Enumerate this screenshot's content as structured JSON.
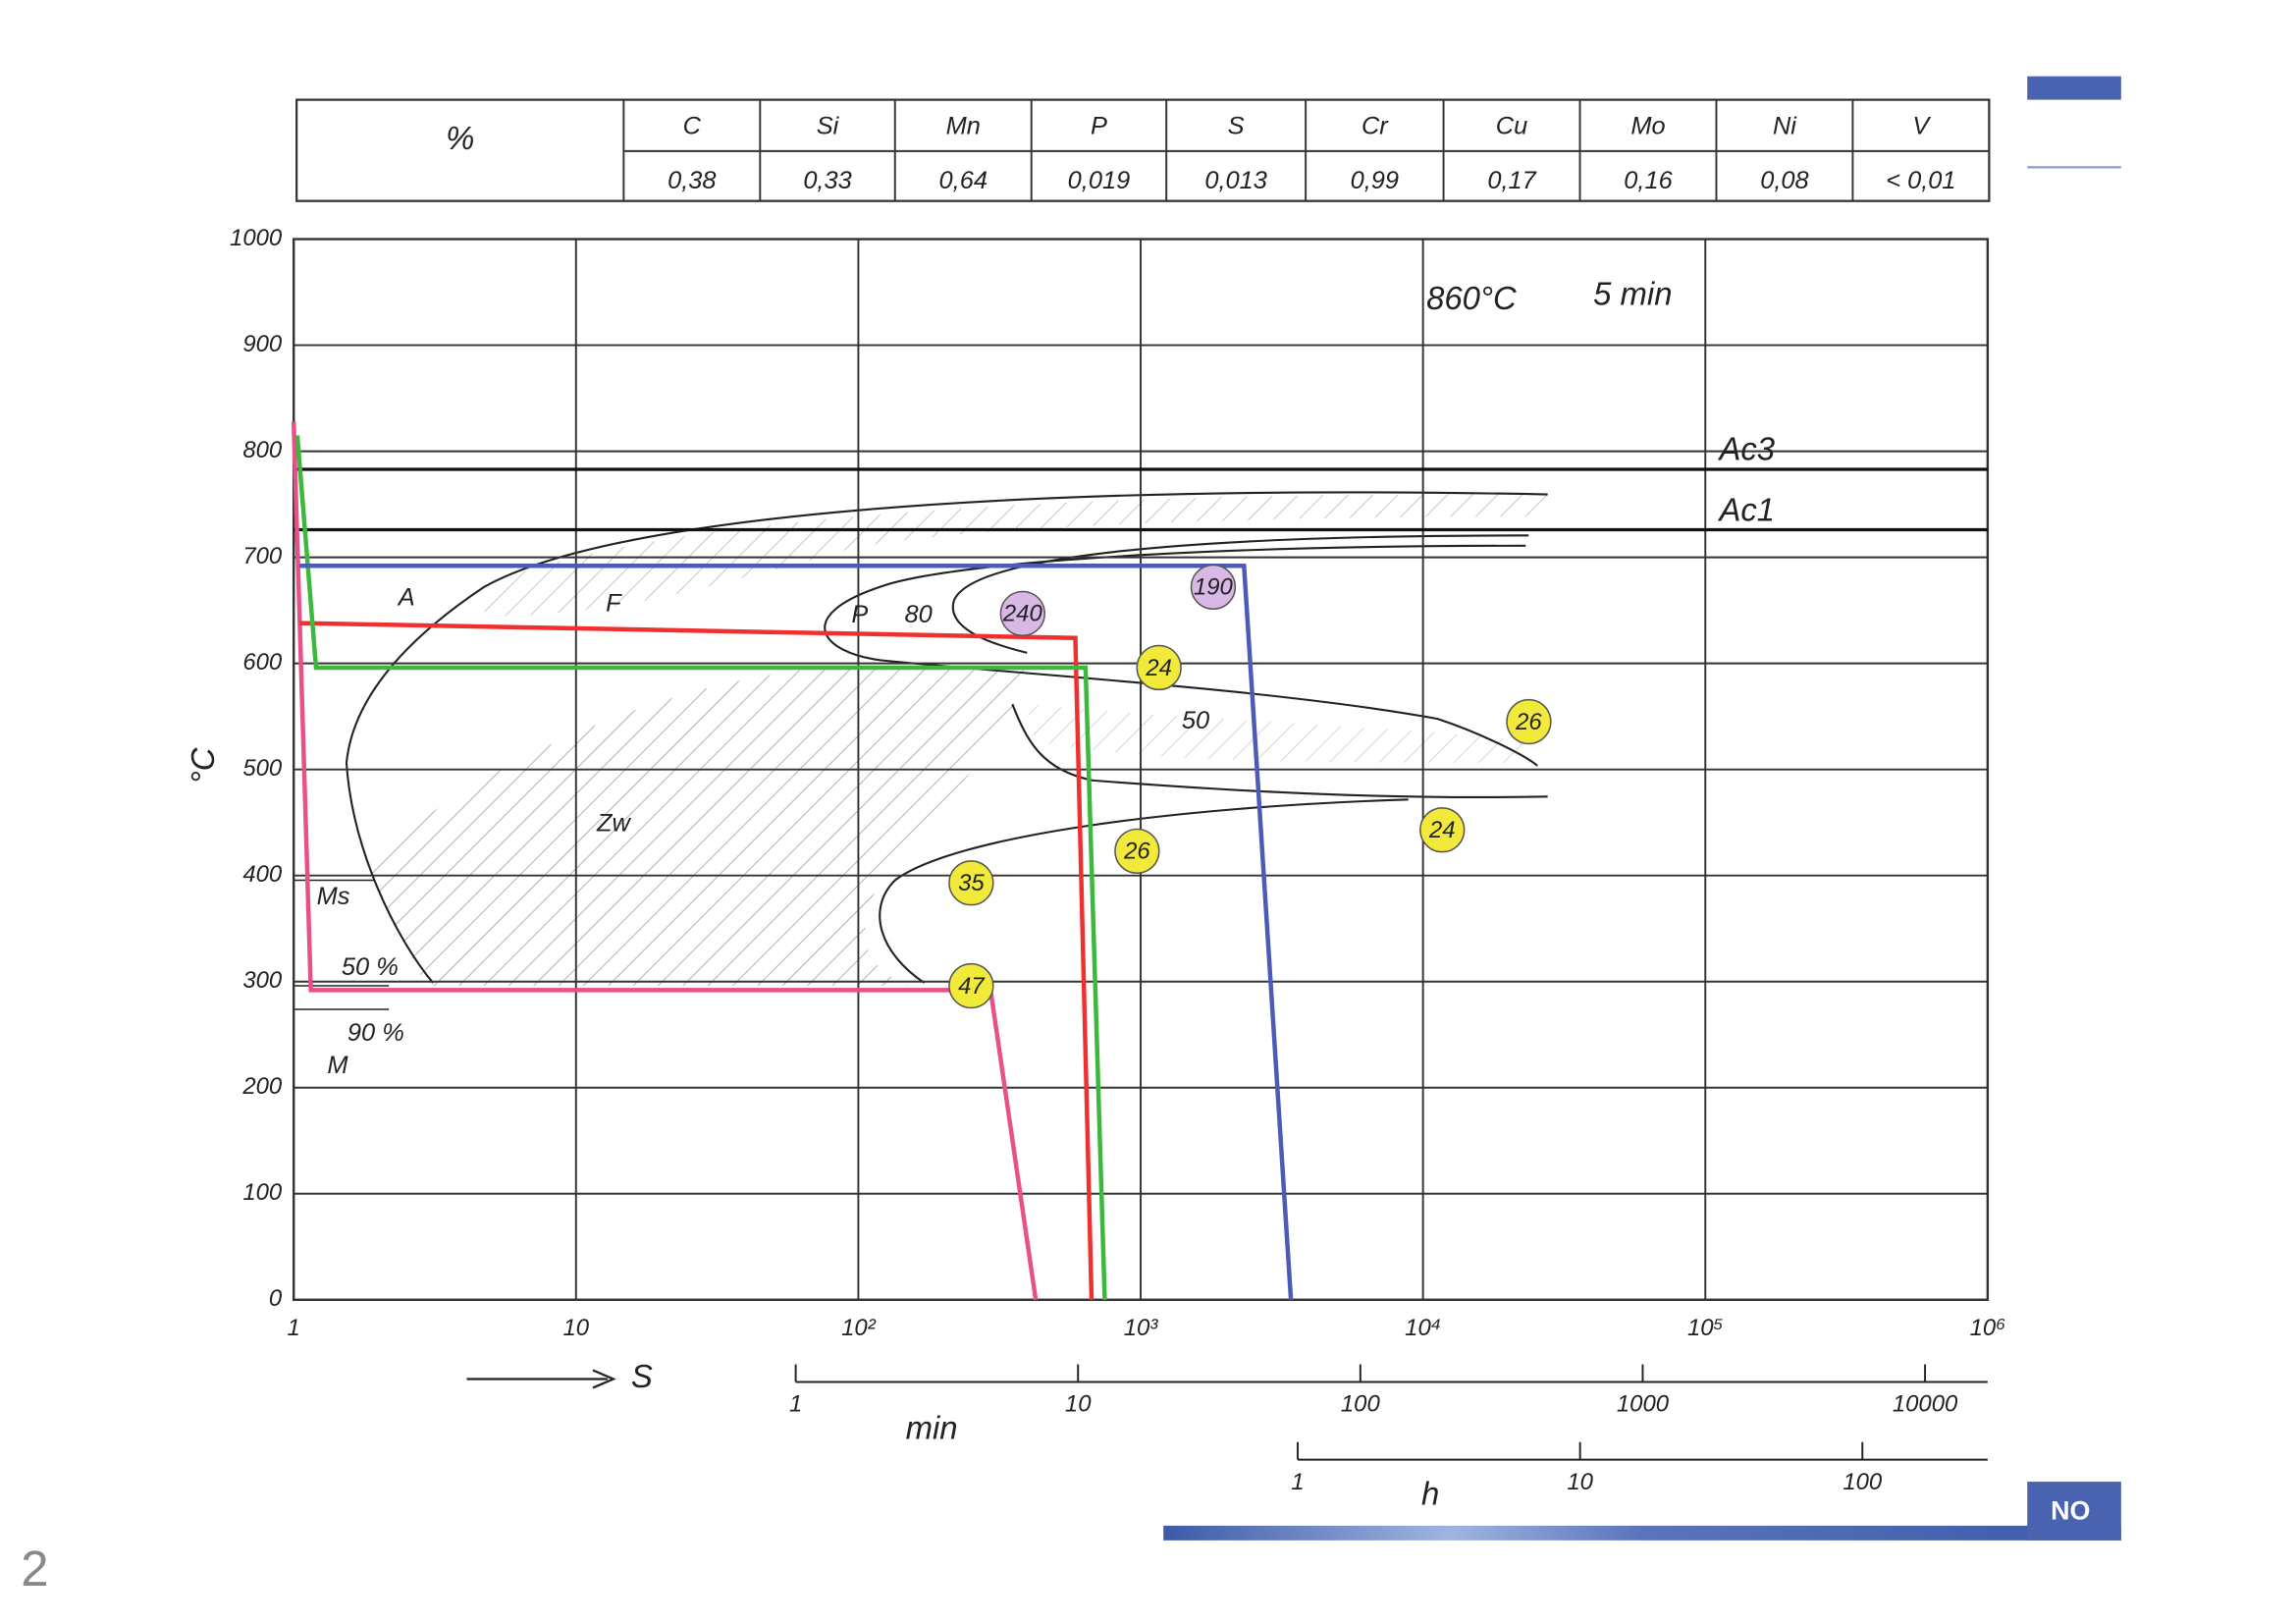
{
  "table": {
    "header": [
      "%",
      "C",
      "Si",
      "Mn",
      "P",
      "S",
      "Cr",
      "Cu",
      "Mo",
      "Ni",
      "V"
    ],
    "values": [
      "0,38",
      "0,33",
      "0,64",
      "0,019",
      "0,013",
      "0,99",
      "0,17",
      "0,16",
      "0,08",
      "< 0,01"
    ]
  },
  "chart_data": {
    "type": "cct",
    "ylabel": "°C",
    "ylim": [
      0,
      1000
    ],
    "yticks": [
      0,
      100,
      200,
      300,
      400,
      500,
      600,
      700,
      800,
      900,
      1000
    ],
    "xscale": "log",
    "xlim": [
      1,
      1000000
    ],
    "xticks": [
      1,
      10,
      {
        "value": 100,
        "label": "10²"
      },
      {
        "value": 1000,
        "label": "10³"
      },
      {
        "value": 10000,
        "label": "10⁴"
      },
      {
        "value": 100000,
        "label": "10⁵"
      },
      {
        "value": 1000000,
        "label": "10⁶"
      }
    ],
    "xlabel": "S",
    "x2label": "min",
    "x2ticks": [
      {
        "value": 60,
        "label": "1"
      },
      {
        "value": 600,
        "label": "10"
      },
      {
        "value": 6000,
        "label": "100"
      },
      {
        "value": 60000,
        "label": "1000"
      },
      {
        "value": 600000,
        "label": "10000"
      }
    ],
    "x3label": "h",
    "x3ticks": [
      {
        "value": 3600,
        "label": "1"
      },
      {
        "value": 36000,
        "label": "10"
      },
      {
        "value": 360000,
        "label": "100"
      }
    ],
    "grid": true,
    "series": [
      {
        "color": "#e8508a",
        "x": [
          1,
          1.15,
          294,
          425
        ],
        "y": [
          828,
          292,
          292,
          0
        ]
      },
      {
        "color": "#ee3030",
        "x": [
          1.05,
          587,
          670
        ],
        "y": [
          638,
          624,
          0
        ]
      },
      {
        "color": "#3cb83c",
        "x": [
          1.03,
          1.2,
          638,
          746
        ],
        "y": [
          815,
          596,
          596,
          0
        ]
      },
      {
        "color": "#4a5cb8",
        "x": [
          1.05,
          2323,
          3406
        ],
        "y": [
          692,
          692,
          0
        ]
      }
    ],
    "reference_lines": [
      {
        "name": "Ac3",
        "value": 783
      },
      {
        "name": "Ac1",
        "value": 726
      }
    ],
    "hardness": [
      {
        "value": 240,
        "x": 382,
        "y": 647,
        "color": "#d9b8e6"
      },
      {
        "value": 190,
        "x": 1807,
        "y": 672,
        "color": "#d9b8e6"
      },
      {
        "value": 24,
        "x": 1161,
        "y": 596,
        "color": "#f2ea3a"
      },
      {
        "value": 26,
        "x": 23700,
        "y": 545,
        "color": "#f2ea3a"
      },
      {
        "value": 24,
        "x": 11700,
        "y": 443,
        "color": "#f2ea3a"
      },
      {
        "value": 26,
        "x": 971,
        "y": 423,
        "color": "#f2ea3a"
      },
      {
        "value": 35,
        "x": 251,
        "y": 393,
        "color": "#f2ea3a"
      },
      {
        "value": 47,
        "x": 251,
        "y": 296,
        "color": "#f2ea3a"
      }
    ],
    "annotations": [
      "860°C",
      "5 min",
      "A",
      "F",
      "P",
      "80",
      "50",
      "Zw",
      "Ms",
      "50 %",
      "90 %",
      "M"
    ]
  },
  "footer": {
    "banner": "NO",
    "page": "2"
  }
}
